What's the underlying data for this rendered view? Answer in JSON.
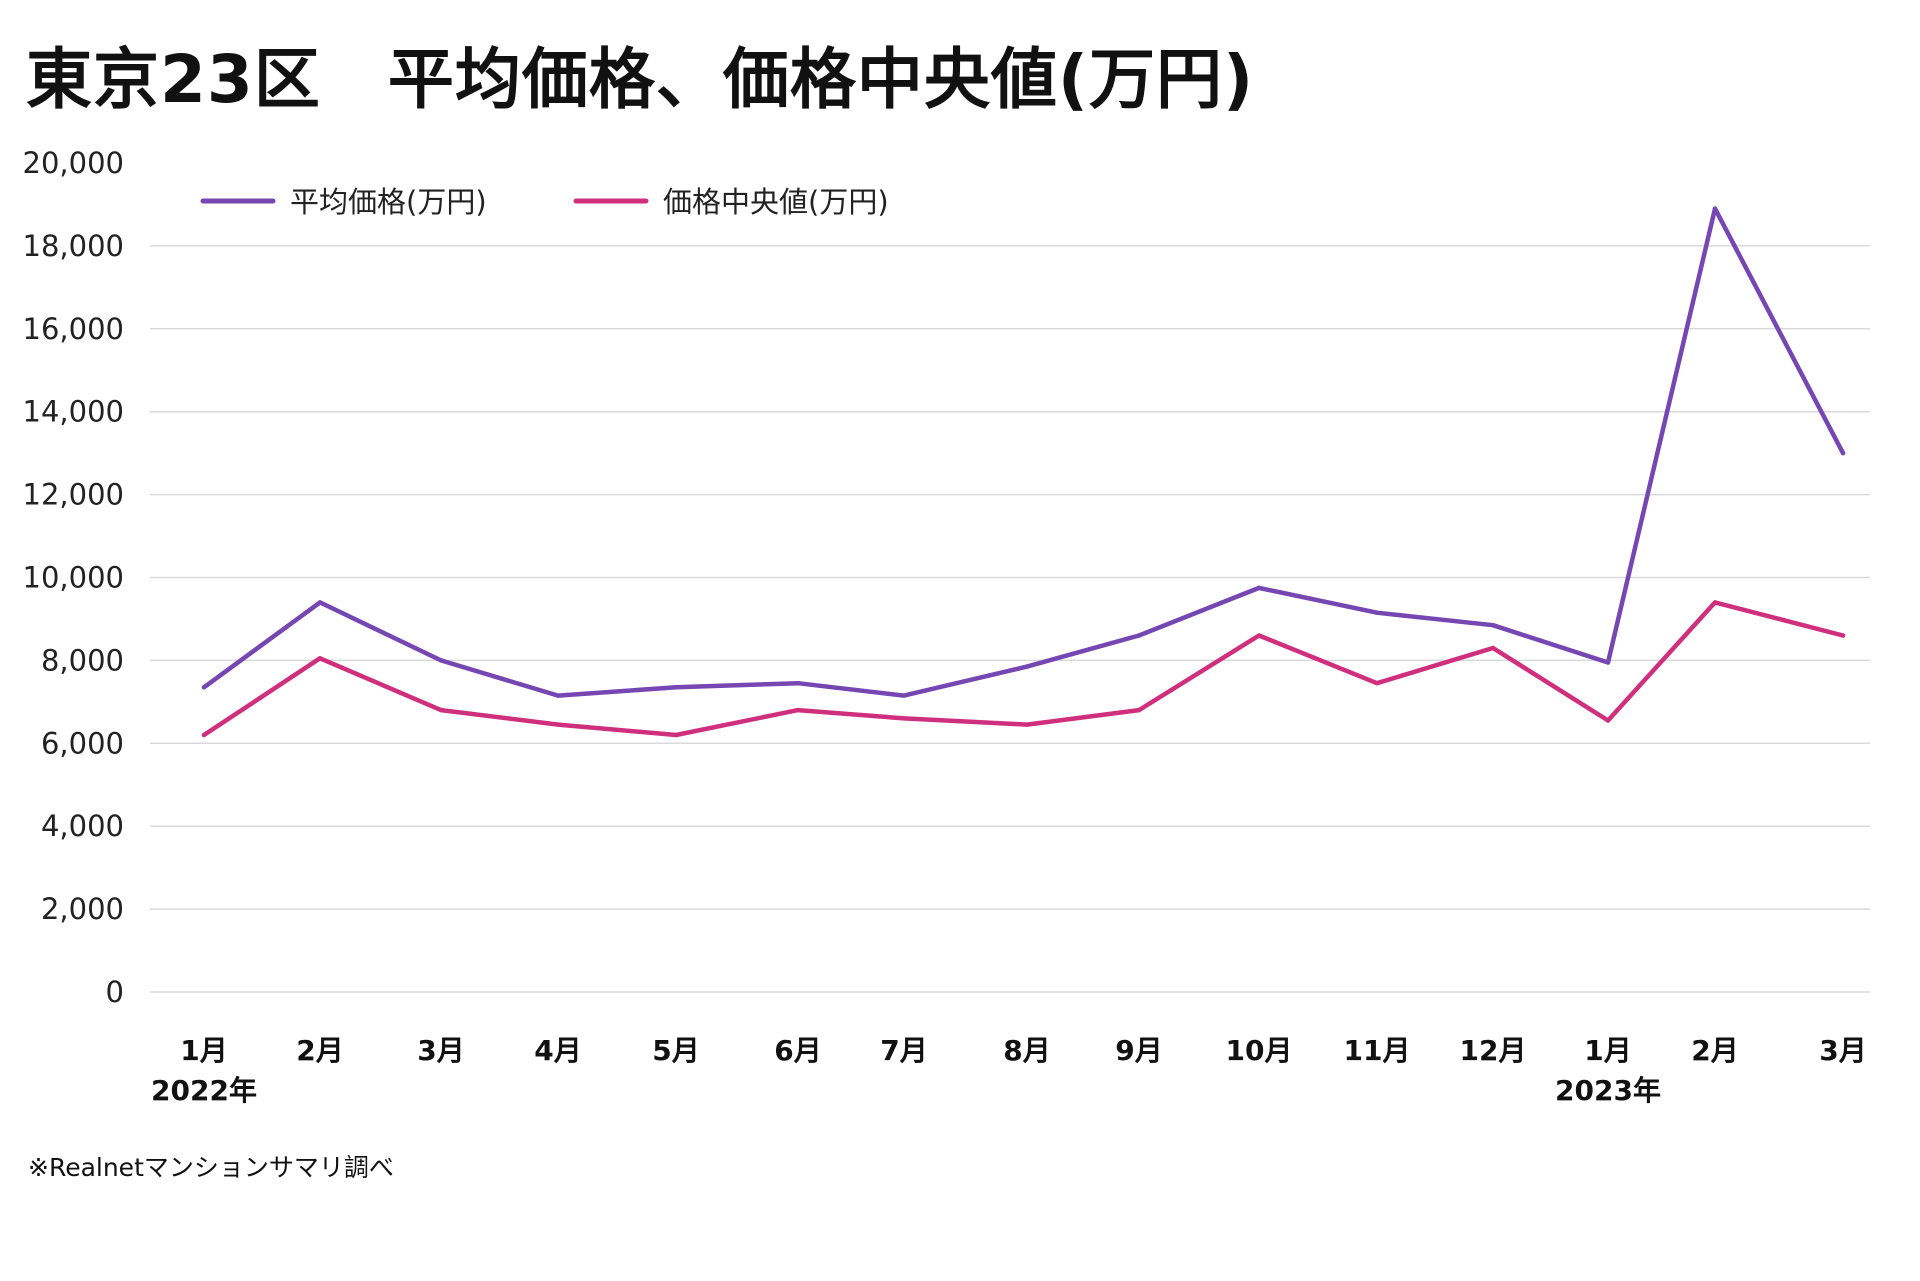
{
  "chart_data": {
    "type": "line",
    "title": "東京23区　平均価格、価格中央値(万円)",
    "categories": [
      "1月",
      "2月",
      "3月",
      "4月",
      "5月",
      "6月",
      "7月",
      "8月",
      "9月",
      "10月",
      "11月",
      "12月",
      "1月",
      "2月",
      "3月"
    ],
    "year_labels": [
      {
        "index": 0,
        "label": "2022年"
      },
      {
        "index": 12,
        "label": "2023年"
      }
    ],
    "series": [
      {
        "name": "平均価格(万円)",
        "color": "#7646b3",
        "values": [
          7350,
          9400,
          8000,
          7150,
          7350,
          7450,
          7150,
          7850,
          8600,
          9750,
          9150,
          8850,
          7950,
          18900,
          13000
        ]
      },
      {
        "name": "価格中央値(万円)",
        "color": "#cf2f7d",
        "values": [
          6200,
          8050,
          6800,
          6450,
          6200,
          6800,
          6600,
          6450,
          6800,
          8600,
          7450,
          8300,
          6550,
          9400,
          8600
        ]
      }
    ],
    "ylim": [
      0,
      20000
    ],
    "yticks": [
      0,
      2000,
      4000,
      6000,
      8000,
      10000,
      12000,
      14000,
      16000,
      18000,
      20000
    ],
    "ytick_labels": [
      "0",
      "2,000",
      "4,000",
      "6,000",
      "8,000",
      "10,000",
      "12,000",
      "14,000",
      "16,000",
      "18,000",
      "20,000"
    ],
    "grid": true,
    "legend": "top-left",
    "source": "※Realnetマンションサマリ調べ"
  }
}
